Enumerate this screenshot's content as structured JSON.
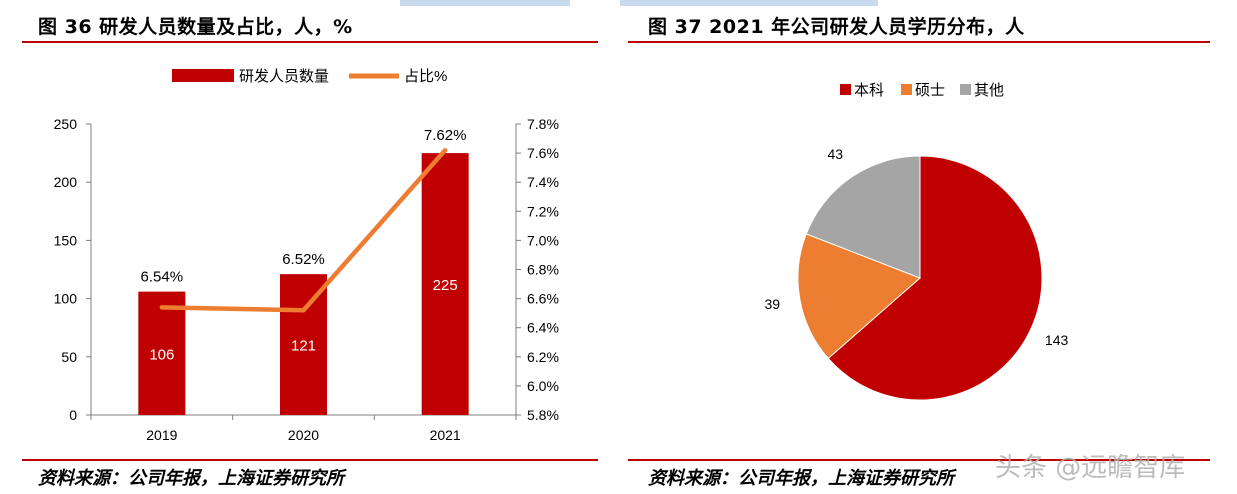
{
  "figure_left": {
    "title": "图 36 研发人员数量及占比，人，%",
    "source": "资料来源：公司年报，上海证券研究所"
  },
  "figure_right": {
    "title": "图 37 2021 年公司研发人员学历分布，人",
    "source": "资料来源：公司年报，上海证券研究所"
  },
  "watermark": "头条 @远瞻智库",
  "colors": {
    "accent": "#c00000",
    "line": "#ed7d31",
    "other": "#a5a5a5"
  },
  "chart_data": [
    {
      "type": "bar",
      "categories": [
        "2019",
        "2020",
        "2021"
      ],
      "series": [
        {
          "name": "研发人员数量",
          "type": "bar",
          "axis": "left",
          "values": [
            106,
            121,
            225
          ],
          "labels": [
            "106",
            "121",
            "225"
          ],
          "color": "#c00000"
        },
        {
          "name": "占比%",
          "type": "line",
          "axis": "right",
          "values": [
            6.54,
            6.52,
            7.62
          ],
          "labels": [
            "6.54%",
            "6.52%",
            "7.62%"
          ],
          "color": "#ed7d31"
        }
      ],
      "y_left": {
        "min": 0,
        "max": 250,
        "ticks": [
          0,
          50,
          100,
          150,
          200,
          250
        ],
        "tick_labels": [
          "0",
          "50",
          "100",
          "150",
          "200",
          "250"
        ]
      },
      "y_right": {
        "min": 5.8,
        "max": 7.8,
        "ticks": [
          5.8,
          6.0,
          6.2,
          6.4,
          6.6,
          6.8,
          7.0,
          7.2,
          7.4,
          7.6,
          7.8
        ],
        "tick_labels": [
          "5.8%",
          "6.0%",
          "6.2%",
          "6.4%",
          "6.6%",
          "6.8%",
          "7.0%",
          "7.2%",
          "7.4%",
          "7.6%",
          "7.8%"
        ]
      },
      "legend": "top",
      "grid": false
    },
    {
      "type": "pie",
      "categories": [
        "本科",
        "硕士",
        "其他"
      ],
      "values": [
        143,
        39,
        43
      ],
      "labels": [
        "143",
        "39",
        "43"
      ],
      "colors": [
        "#c00000",
        "#ed7d31",
        "#a5a5a5"
      ],
      "legend": "top"
    }
  ]
}
